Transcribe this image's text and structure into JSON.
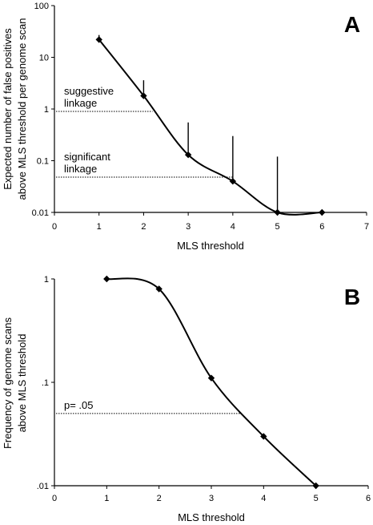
{
  "chart_data": [
    {
      "type": "line",
      "panel_label": "A",
      "xlabel": "MLS threshold",
      "ylabel": [
        "Expected number of false positives",
        "above MLS threshold per genome scan"
      ],
      "xlim": [
        0,
        7
      ],
      "ylim": [
        0.01,
        100
      ],
      "yscale": "log",
      "grid": false,
      "x_ticks": [
        "0",
        "1",
        "2",
        "3",
        "4",
        "5",
        "6",
        "7"
      ],
      "y_ticks": [
        {
          "value": 100,
          "label": "100"
        },
        {
          "value": 10,
          "label": "10"
        },
        {
          "value": 1,
          "label": "1"
        },
        {
          "value": 0.1,
          "label": "0.1"
        },
        {
          "value": 0.01,
          "label": "0.01"
        }
      ],
      "series": [
        {
          "x": [
            1,
            2,
            3,
            4,
            5,
            6
          ],
          "y": [
            22,
            1.8,
            0.13,
            0.04,
            0.01,
            0.01
          ],
          "error_upper": [
            27,
            3.6,
            0.55,
            0.3,
            0.12,
            null
          ]
        }
      ],
      "reference_lines": [
        {
          "label": [
            "suggestive",
            "linkage"
          ],
          "y": 0.9,
          "x_end": 2.2
        },
        {
          "label": [
            "significant",
            "linkage"
          ],
          "y": 0.048,
          "x_end": 4.0
        }
      ]
    },
    {
      "type": "line",
      "panel_label": "B",
      "xlabel": "MLS threshold",
      "ylabel": [
        "Frequency of genome scans",
        "above MLS threshold"
      ],
      "xlim": [
        0,
        6
      ],
      "ylim": [
        0.01,
        1
      ],
      "yscale": "log",
      "grid": false,
      "x_ticks": [
        "0",
        "1",
        "2",
        "3",
        "4",
        "5",
        "6"
      ],
      "y_ticks": [
        {
          "value": 1,
          "label": "1"
        },
        {
          "value": 0.1,
          "label": ".1"
        },
        {
          "value": 0.01,
          "label": ".01"
        }
      ],
      "series": [
        {
          "x": [
            1,
            2,
            3,
            4,
            5
          ],
          "y": [
            1.0,
            0.8,
            0.11,
            0.03,
            0.01
          ]
        }
      ],
      "reference_lines": [
        {
          "label": [
            "p= .05"
          ],
          "y": 0.05,
          "x_end": 3.55
        }
      ]
    }
  ]
}
